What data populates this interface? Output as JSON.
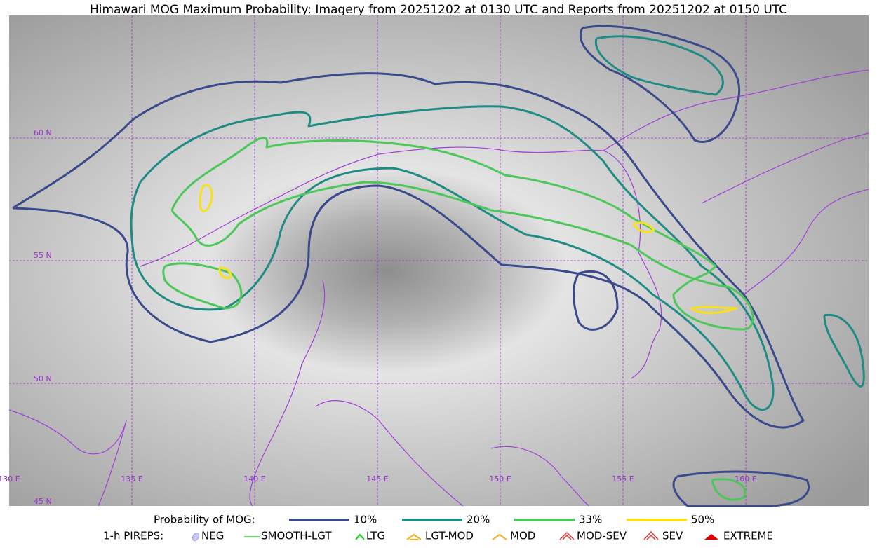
{
  "title": "Himawari MOG Maximum Probability: Imagery from 20251202 at 0130 UTC and Reports from 20251202 at 0150 UTC",
  "grid": {
    "lat_labels": [
      "60 N",
      "55 N",
      "50 N",
      "45 N"
    ],
    "lon_labels": [
      "130 E",
      "135 E",
      "140 E",
      "145 E",
      "150 E",
      "155 E",
      "160 E"
    ]
  },
  "legend": {
    "probability": {
      "label": "Probability of MOG:",
      "items": [
        {
          "label": "10%",
          "color": "#3a4a8a"
        },
        {
          "label": "20%",
          "color": "#1f8c84"
        },
        {
          "label": "33%",
          "color": "#4dc75a"
        },
        {
          "label": "50%",
          "color": "#f7e11b"
        }
      ]
    },
    "pireps": {
      "label": "1-h PIREPS:",
      "items": [
        "NEG",
        "SMOOTH-LGT",
        "LTG",
        "LGT-MOD",
        "MOD",
        "MOD-SEV",
        "SEV",
        "EXTREME"
      ]
    }
  }
}
